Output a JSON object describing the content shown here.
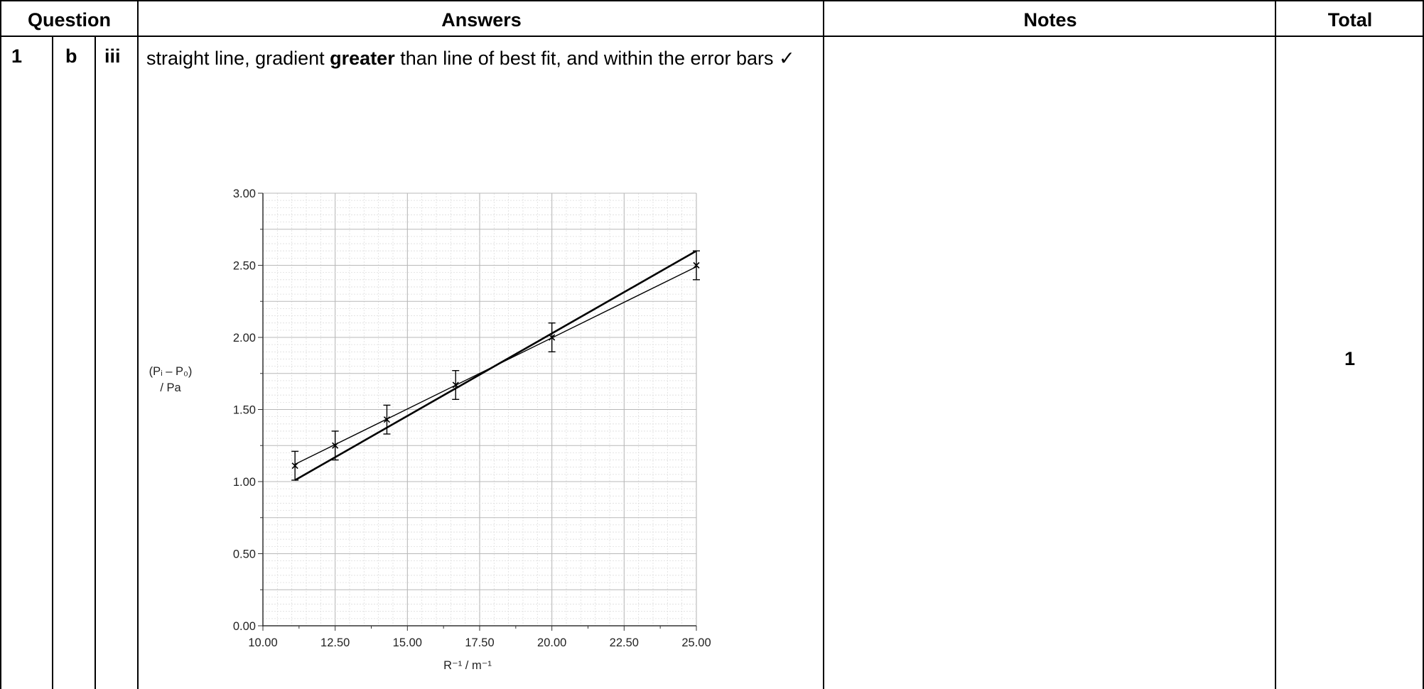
{
  "table": {
    "headers": {
      "question": "Question",
      "answers": "Answers",
      "notes": "Notes",
      "total": "Total"
    },
    "row": {
      "q_num": "1",
      "q_part": "b",
      "q_sub": "iii",
      "answer_pre": "straight line, gradient ",
      "answer_bold": "greater",
      "answer_post": " than line of best fit, and within the error bars ✓",
      "notes": "",
      "total": "1"
    }
  },
  "chart_data": {
    "type": "scatter",
    "title": "",
    "xlabel": "R⁻¹ / m⁻¹",
    "ylabel_line1": "(Pᵢ – P₀)",
    "ylabel_line2": "/ Pa",
    "xlim": [
      10.0,
      25.0
    ],
    "ylim": [
      0.0,
      3.0
    ],
    "x_ticks": [
      "10.00",
      "12.50",
      "15.00",
      "17.50",
      "20.00",
      "22.50",
      "25.00"
    ],
    "y_ticks": [
      "0.00",
      "0.50",
      "1.00",
      "1.50",
      "2.00",
      "2.50",
      "3.00"
    ],
    "grid": true,
    "series": [
      {
        "x": [
          11.11,
          12.5,
          14.29,
          16.67,
          20.0,
          25.0
        ],
        "y": [
          1.11,
          1.25,
          1.43,
          1.67,
          2.0,
          2.5
        ],
        "error": [
          0.1,
          0.1,
          0.1,
          0.1,
          0.1,
          0.1
        ]
      }
    ],
    "lines": [
      {
        "x": [
          11.11,
          25.0
        ],
        "y": [
          1.12,
          2.49
        ],
        "style": "best-fit"
      },
      {
        "x": [
          11.11,
          25.0
        ],
        "y": [
          1.01,
          2.6
        ],
        "style": "steeper"
      }
    ]
  }
}
